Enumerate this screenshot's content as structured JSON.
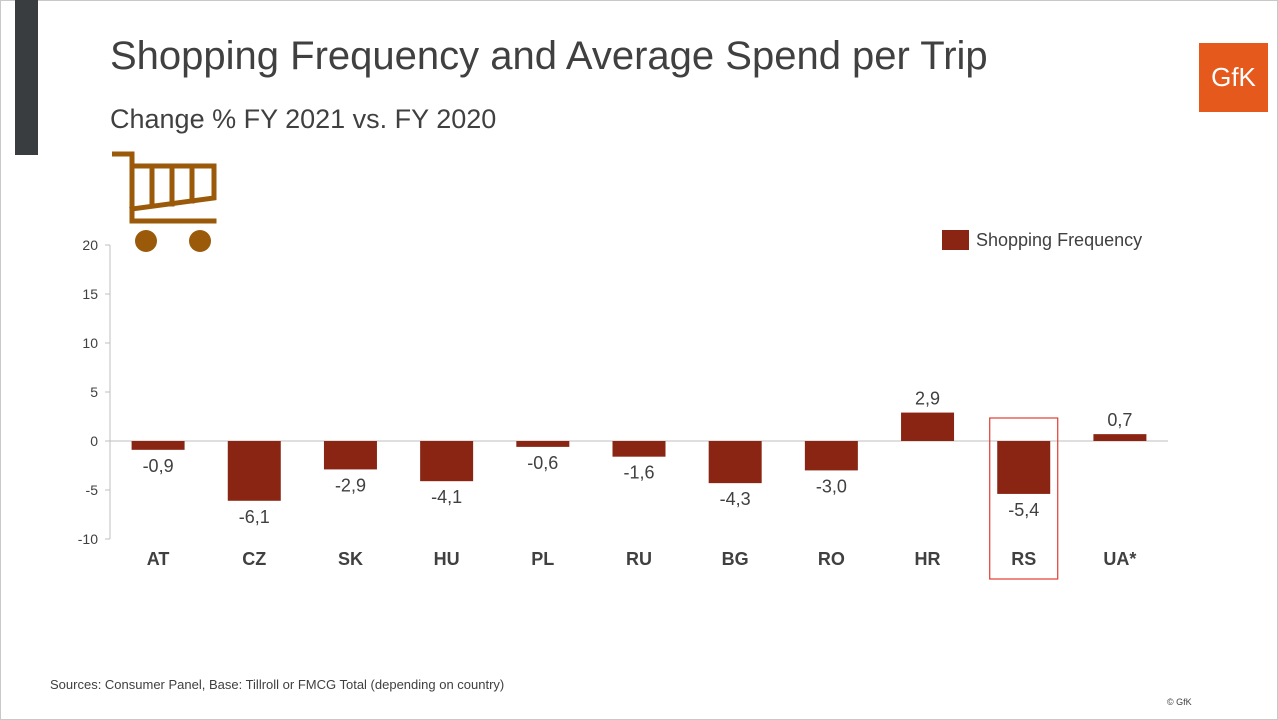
{
  "header": {
    "title": "Shopping Frequency and Average Spend per Trip",
    "subtitle": "Change % FY 2021 vs. FY 2020",
    "logo_text": "GfK"
  },
  "colors": {
    "bar": "#8b2513",
    "highlight_box": "#e03c31",
    "accent_bar": "#3a3d40",
    "logo_bg": "#e55a1c",
    "cart_icon": "#9a5a0a"
  },
  "icons": {
    "cart": "shopping-cart-icon"
  },
  "chart_data": {
    "type": "bar",
    "categories": [
      "AT",
      "CZ",
      "SK",
      "HU",
      "PL",
      "RU",
      "BG",
      "RO",
      "HR",
      "RS",
      "UA*"
    ],
    "series": [
      {
        "name": "Shopping Frequency",
        "values": [
          -0.9,
          -6.1,
          -2.9,
          -4.1,
          -0.6,
          -1.6,
          -4.3,
          -3.0,
          2.9,
          -5.4,
          0.7
        ],
        "labels": [
          "-0,9",
          "-6,1",
          "-2,9",
          "-4,1",
          "-0,6",
          "-1,6",
          "-4,3",
          "-3,0",
          "2,9",
          "-5,4",
          "0,7"
        ]
      }
    ],
    "ylim": [
      -10,
      20
    ],
    "yticks": [
      -10,
      -5,
      0,
      5,
      10,
      15,
      20
    ],
    "ytick_labels": [
      "-10",
      "-5",
      "0",
      "5",
      "10",
      "15",
      "20"
    ],
    "grid": false,
    "legend_position": "top-right",
    "highlighted_category": "RS"
  },
  "footer": {
    "source": "Sources: Consumer Panel, Base: Tillroll or FMCG Total (depending on country)",
    "copyright": "© GfK"
  }
}
